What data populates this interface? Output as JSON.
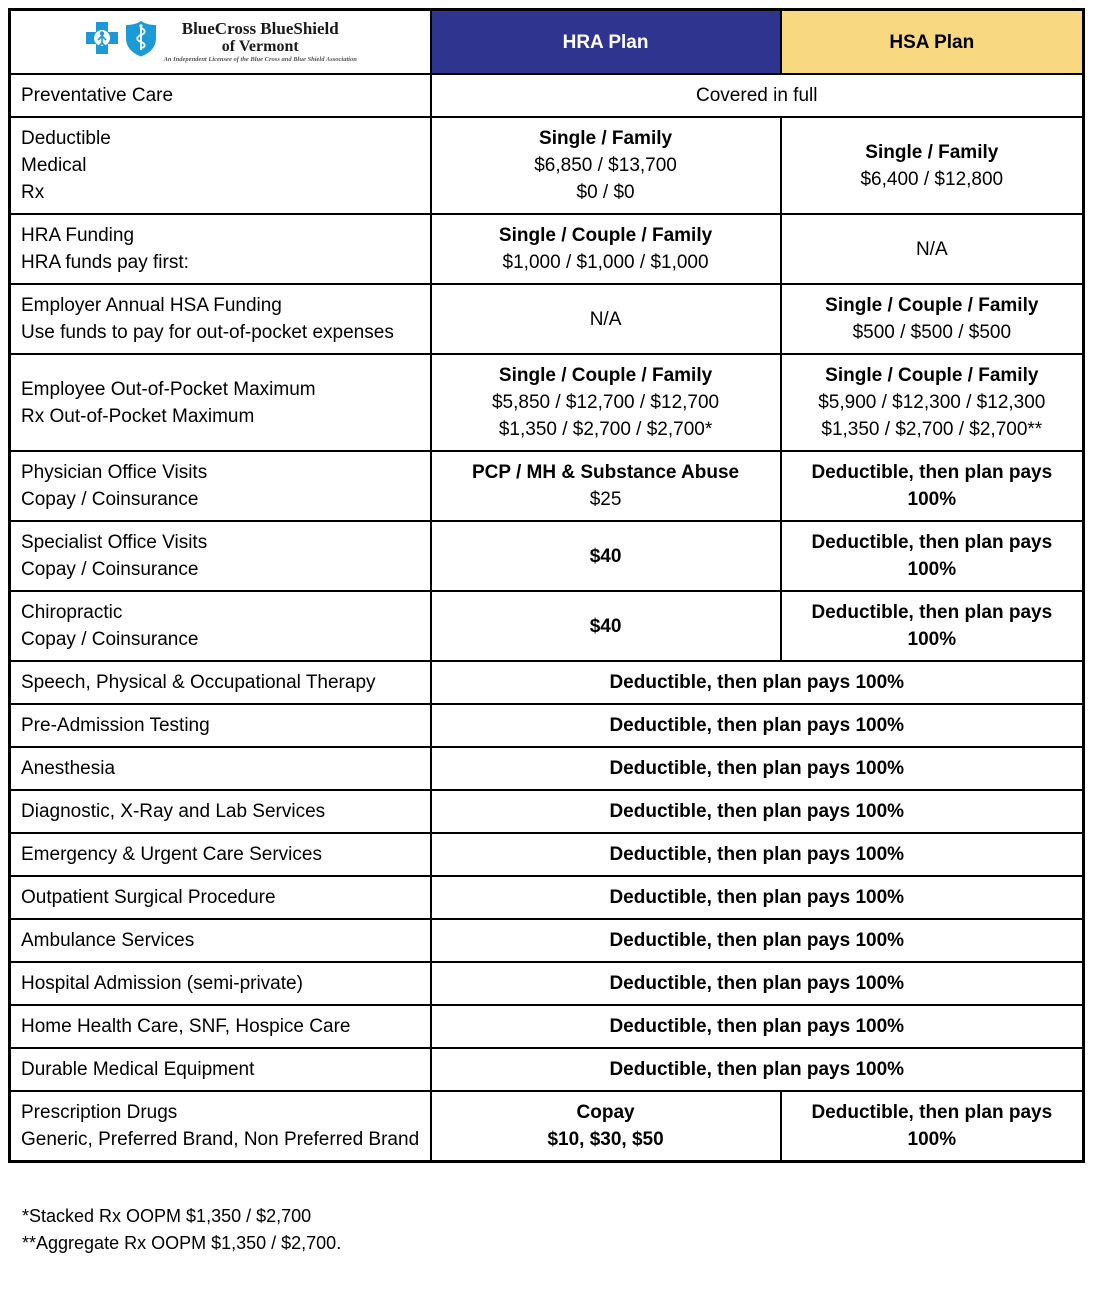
{
  "logo": {
    "name": "BlueCross BlueShield",
    "region": "of Vermont",
    "tagline": "An Independent Licensee of the Blue Cross and Blue Shield Association",
    "brand_color": "#1C9AD6"
  },
  "header": {
    "hra_label": "HRA Plan",
    "hsa_label": "HSA Plan",
    "hra_bg": "#2F348F",
    "hsa_bg": "#F8D880"
  },
  "rows": [
    {
      "label": [
        {
          "text": "Preventative Care",
          "bold": true
        }
      ],
      "cells": [
        {
          "span": 2,
          "lines": [
            {
              "text": "Covered in full",
              "bold": false
            }
          ]
        }
      ]
    },
    {
      "label": [
        {
          "text": "Deductible",
          "bold": true
        },
        {
          "text": "Medical",
          "bold": false
        },
        {
          "text": "Rx",
          "bold": false
        }
      ],
      "cells": [
        {
          "span": 1,
          "lines": [
            {
              "text": "Single / Family",
              "bold": true
            },
            {
              "text": "$6,850 / $13,700",
              "bold": false
            },
            {
              "text": "$0 / $0",
              "bold": false
            }
          ]
        },
        {
          "span": 1,
          "lines": [
            {
              "text": "Single / Family",
              "bold": true
            },
            {
              "text": "$6,400 / $12,800",
              "bold": false
            }
          ]
        }
      ]
    },
    {
      "label": [
        {
          "text": "HRA Funding",
          "bold": true
        },
        {
          "text": "HRA funds pay first:",
          "bold": false
        }
      ],
      "cells": [
        {
          "span": 1,
          "lines": [
            {
              "text": "Single / Couple / Family",
              "bold": true
            },
            {
              "text": "$1,000 / $1,000 / $1,000",
              "bold": false
            }
          ]
        },
        {
          "span": 1,
          "lines": [
            {
              "text": "N/A",
              "bold": false
            }
          ]
        }
      ]
    },
    {
      "label": [
        {
          "text": "Employer Annual HSA Funding",
          "bold": true
        },
        {
          "text": "Use funds to pay for out-of-pocket expenses",
          "bold": false
        }
      ],
      "cells": [
        {
          "span": 1,
          "lines": [
            {
              "text": "N/A",
              "bold": false
            }
          ]
        },
        {
          "span": 1,
          "lines": [
            {
              "text": "Single / Couple / Family",
              "bold": true
            },
            {
              "text": "$500 / $500 / $500",
              "bold": false
            }
          ]
        }
      ]
    },
    {
      "label": [
        {
          "text": "Employee Out-of-Pocket Maximum",
          "bold": true
        },
        {
          "text": "Rx Out-of-Pocket Maximum",
          "bold": true
        }
      ],
      "cells": [
        {
          "span": 1,
          "lines": [
            {
              "text": "Single / Couple / Family",
              "bold": true
            },
            {
              "text": "$5,850 / $12,700 / $12,700",
              "bold": false
            },
            {
              "text": "$1,350 / $2,700 / $2,700*",
              "bold": false
            }
          ]
        },
        {
          "span": 1,
          "lines": [
            {
              "text": "Single / Couple / Family",
              "bold": true
            },
            {
              "text": "$5,900 / $12,300 / $12,300",
              "bold": false
            },
            {
              "text": "$1,350 / $2,700 / $2,700**",
              "bold": false
            }
          ]
        }
      ]
    },
    {
      "label": [
        {
          "text": "Physician Office Visits",
          "bold": true
        },
        {
          "text": "Copay / Coinsurance",
          "bold": false
        }
      ],
      "cells": [
        {
          "span": 1,
          "lines": [
            {
              "text": "PCP / MH & Substance Abuse",
              "bold": true
            },
            {
              "text": "$25",
              "bold": false
            }
          ]
        },
        {
          "span": 1,
          "lines": [
            {
              "text": "Deductible, then plan pays 100%",
              "bold": true
            }
          ]
        }
      ]
    },
    {
      "label": [
        {
          "text": "Specialist Office Visits",
          "bold": true
        },
        {
          "text": "Copay / Coinsurance",
          "bold": false
        }
      ],
      "cells": [
        {
          "span": 1,
          "lines": [
            {
              "text": "$40",
              "bold": true
            }
          ]
        },
        {
          "span": 1,
          "lines": [
            {
              "text": "Deductible, then plan pays 100%",
              "bold": true
            }
          ]
        }
      ]
    },
    {
      "label": [
        {
          "text": "Chiropractic",
          "bold": true
        },
        {
          "text": "Copay / Coinsurance",
          "bold": false
        }
      ],
      "cells": [
        {
          "span": 1,
          "lines": [
            {
              "text": "$40",
              "bold": true
            }
          ]
        },
        {
          "span": 1,
          "lines": [
            {
              "text": "Deductible, then plan pays 100%",
              "bold": true
            }
          ]
        }
      ]
    },
    {
      "label": [
        {
          "text": "Speech, Physical & Occupational Therapy",
          "bold": true
        }
      ],
      "cells": [
        {
          "span": 2,
          "lines": [
            {
              "text": "Deductible, then plan pays 100%",
              "bold": true
            }
          ]
        }
      ]
    },
    {
      "label": [
        {
          "text": "Pre-Admission Testing",
          "bold": true
        }
      ],
      "cells": [
        {
          "span": 2,
          "lines": [
            {
              "text": "Deductible, then plan pays 100%",
              "bold": true
            }
          ]
        }
      ]
    },
    {
      "label": [
        {
          "text": "Anesthesia",
          "bold": true
        }
      ],
      "cells": [
        {
          "span": 2,
          "lines": [
            {
              "text": "Deductible, then plan pays 100%",
              "bold": true
            }
          ]
        }
      ]
    },
    {
      "label": [
        {
          "text": "Diagnostic, X-Ray and Lab Services",
          "bold": true
        }
      ],
      "cells": [
        {
          "span": 2,
          "lines": [
            {
              "text": "Deductible, then plan pays 100%",
              "bold": true
            }
          ]
        }
      ]
    },
    {
      "label": [
        {
          "text": "Emergency & Urgent Care Services",
          "bold": true
        }
      ],
      "cells": [
        {
          "span": 2,
          "lines": [
            {
              "text": "Deductible, then plan pays 100%",
              "bold": true
            }
          ]
        }
      ]
    },
    {
      "label": [
        {
          "text": "Outpatient Surgical Procedure",
          "bold": true
        }
      ],
      "cells": [
        {
          "span": 2,
          "lines": [
            {
              "text": "Deductible, then plan pays 100%",
              "bold": true
            }
          ]
        }
      ]
    },
    {
      "label": [
        {
          "text": "Ambulance Services",
          "bold": true
        }
      ],
      "cells": [
        {
          "span": 2,
          "lines": [
            {
              "text": "Deductible, then plan pays 100%",
              "bold": true
            }
          ]
        }
      ]
    },
    {
      "label": [
        {
          "text": "Hospital Admission (semi-private)",
          "bold": true
        }
      ],
      "cells": [
        {
          "span": 2,
          "lines": [
            {
              "text": "Deductible, then plan pays 100%",
              "bold": true
            }
          ]
        }
      ]
    },
    {
      "label": [
        {
          "text": "Home Health Care, SNF, Hospice Care",
          "bold": true
        }
      ],
      "cells": [
        {
          "span": 2,
          "lines": [
            {
              "text": "Deductible, then plan pays 100%",
              "bold": true
            }
          ]
        }
      ]
    },
    {
      "label": [
        {
          "text": "Durable Medical Equipment",
          "bold": true
        }
      ],
      "cells": [
        {
          "span": 2,
          "lines": [
            {
              "text": "Deductible, then plan pays 100%",
              "bold": true
            }
          ]
        }
      ]
    },
    {
      "label": [
        {
          "text": "Prescription Drugs",
          "bold": true
        },
        {
          "text": "Generic, Preferred Brand, Non Preferred Brand",
          "bold": true
        }
      ],
      "cells": [
        {
          "span": 1,
          "lines": [
            {
              "text": "Copay",
              "bold": true
            },
            {
              "text": "$10, $30, $50",
              "bold": true
            }
          ]
        },
        {
          "span": 1,
          "lines": [
            {
              "text": "Deductible, then plan pays 100%",
              "bold": true
            }
          ]
        }
      ]
    }
  ],
  "footnotes": [
    "*Stacked Rx OOPM $1,350 / $2,700",
    "**Aggregate Rx OOPM $1,350 / $2,700."
  ]
}
